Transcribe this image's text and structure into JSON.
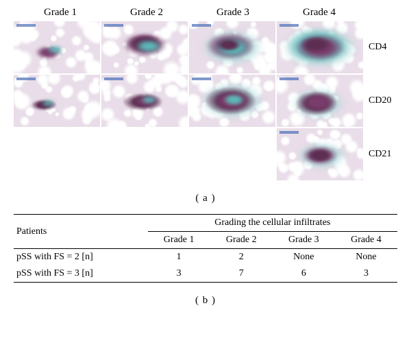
{
  "panelA": {
    "gradeHeaders": [
      "Grade 1",
      "Grade 2",
      "Grade 3",
      "Grade 4"
    ],
    "rowLabels": [
      "CD4",
      "CD20",
      "CD21"
    ],
    "label": "( a )",
    "histology": {
      "background_color": "#f0ecf0",
      "tissue_tint": "#e8dde8",
      "stain_purple": "#7a3d6b",
      "stain_dark_purple": "#5c2e52",
      "stain_cyan": "#5db8b8",
      "stain_light_cyan": "#a8d8d8",
      "white_gaps": "#ffffff"
    }
  },
  "panelB": {
    "label": "( b )",
    "table": {
      "header_patients": "Patients",
      "header_grading": "Grading the cellular infiltrates",
      "columns": [
        "Grade 1",
        "Grade 2",
        "Grade 3",
        "Grade 4"
      ],
      "rows": [
        {
          "label": "pSS with FS = 2 [n]",
          "values": [
            "1",
            "2",
            "None",
            "None"
          ]
        },
        {
          "label": "pSS with FS = 3 [n]",
          "values": [
            "3",
            "7",
            "6",
            "3"
          ]
        }
      ]
    }
  }
}
